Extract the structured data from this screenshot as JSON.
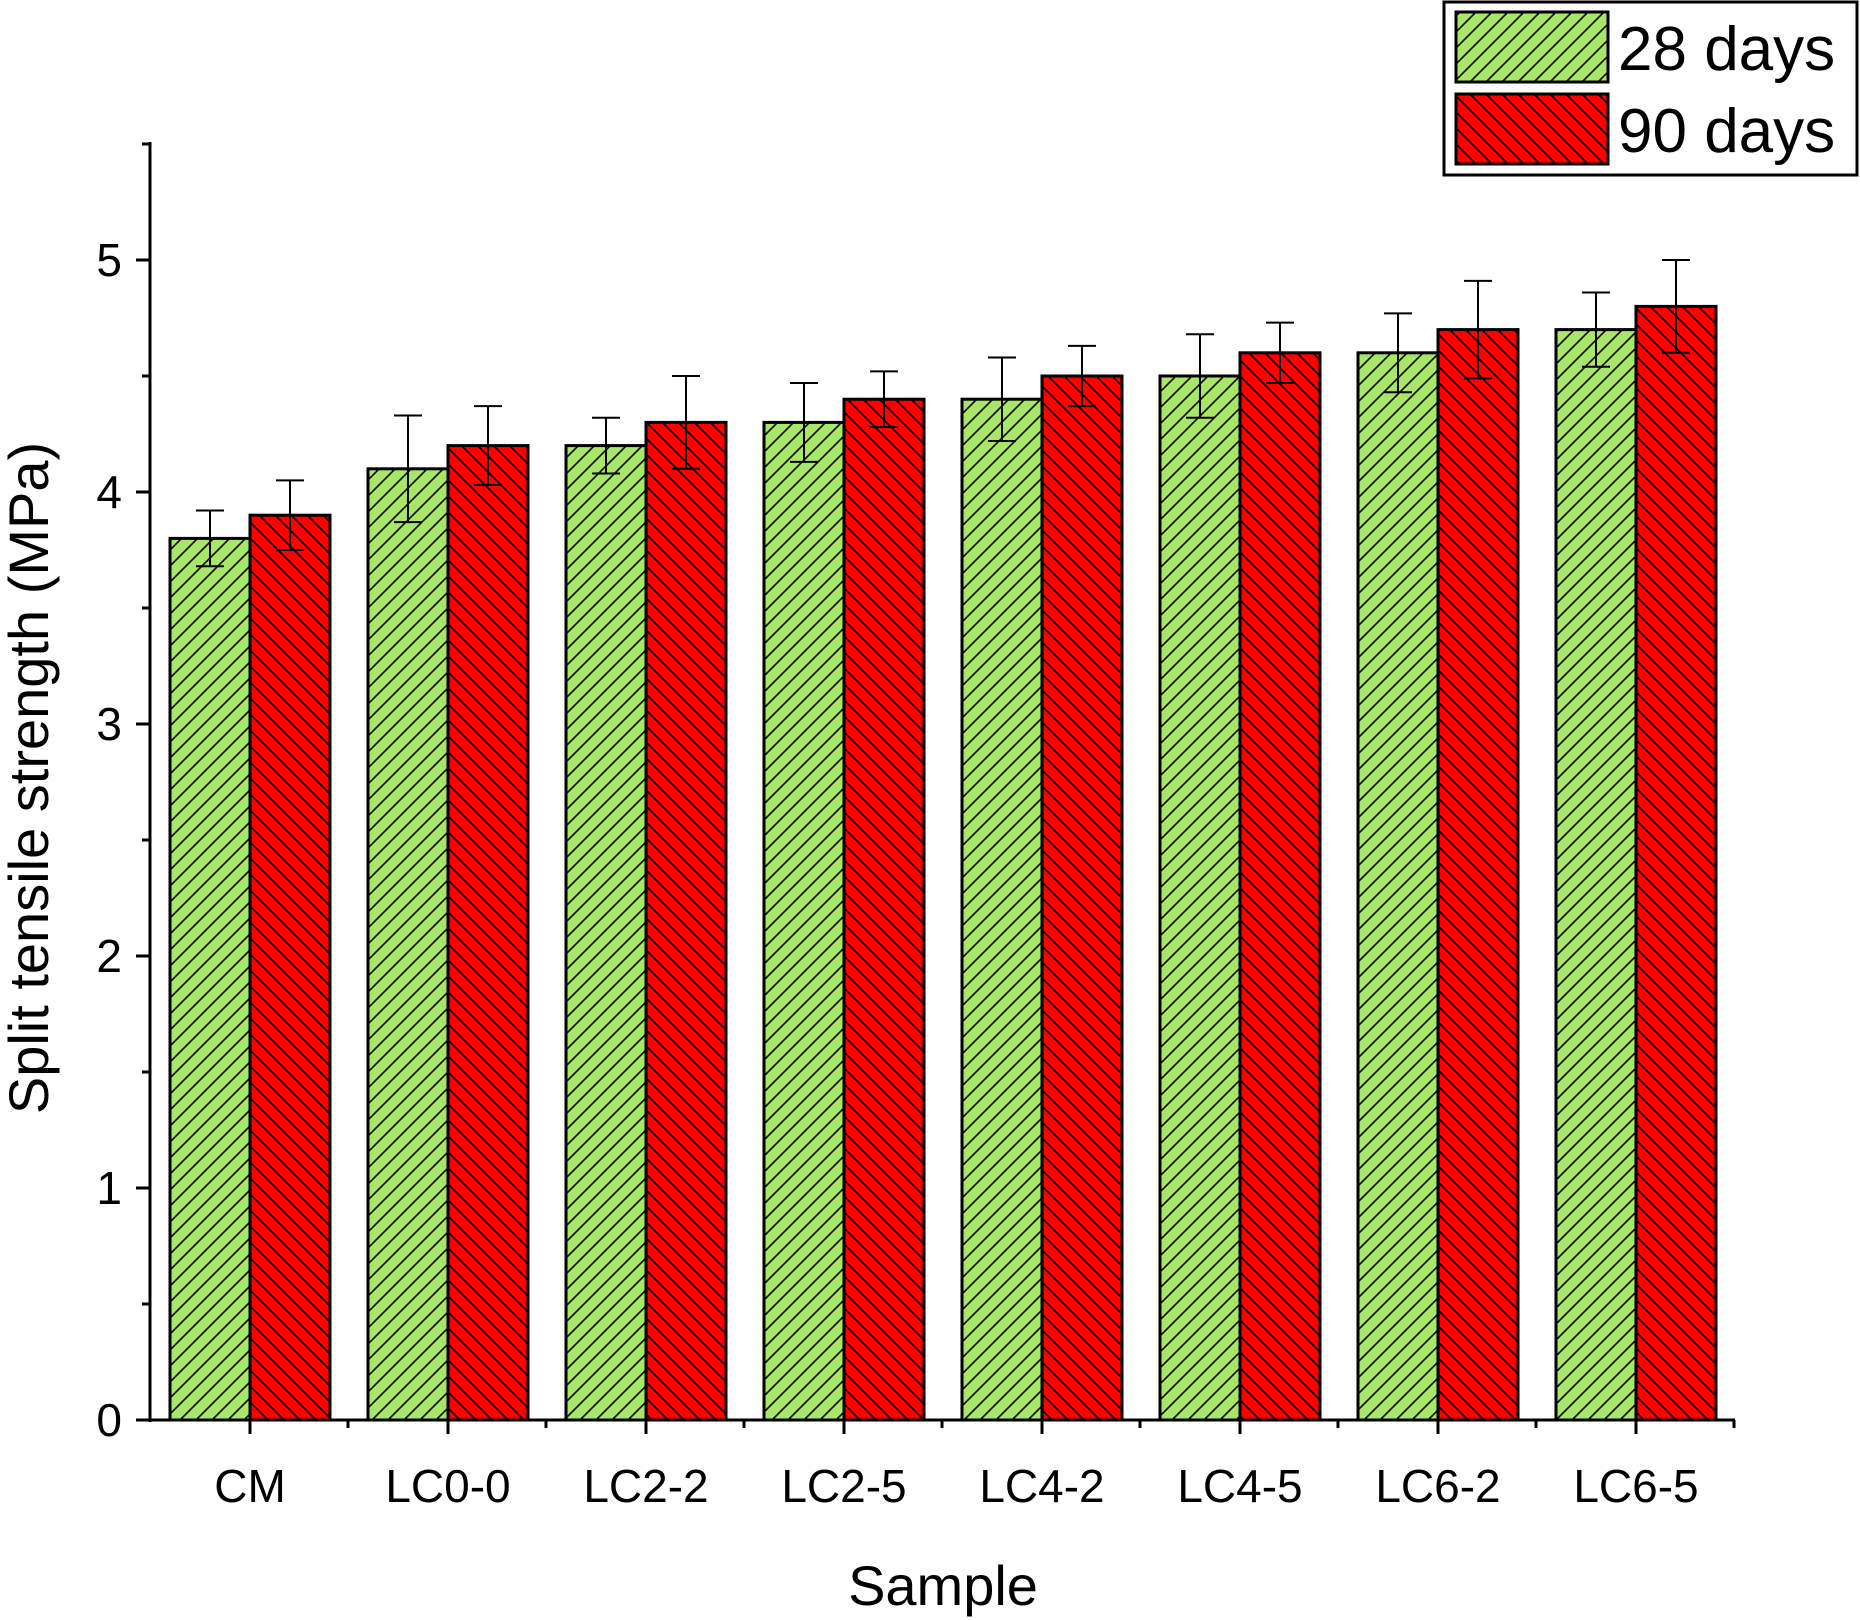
{
  "chart_data": {
    "type": "bar",
    "categories": [
      "CM",
      "LC0-0",
      "LC2-2",
      "LC2-5",
      "LC4-2",
      "LC4-5",
      "LC6-2",
      "LC6-5"
    ],
    "series": [
      {
        "name": "28 days",
        "color": "#a8e66a",
        "hatch": "forward-diagonal",
        "values": [
          3.8,
          4.1,
          4.2,
          4.3,
          4.4,
          4.5,
          4.6,
          4.7
        ],
        "errors": [
          0.12,
          0.23,
          0.12,
          0.17,
          0.18,
          0.18,
          0.17,
          0.16
        ]
      },
      {
        "name": "90 days",
        "color": "#ff0000",
        "hatch": "backward-diagonal",
        "values": [
          3.9,
          4.2,
          4.3,
          4.4,
          4.5,
          4.6,
          4.7,
          4.8
        ],
        "errors": [
          0.15,
          0.17,
          0.2,
          0.12,
          0.13,
          0.13,
          0.21,
          0.2
        ]
      }
    ],
    "xlabel": "Sample",
    "ylabel": "Split tensile strength (MPa)",
    "ylim": [
      0,
      5.5
    ],
    "yticks": [
      "0",
      "1",
      "2",
      "3",
      "4",
      "5"
    ],
    "grid": false,
    "legend_position": "top-right"
  }
}
